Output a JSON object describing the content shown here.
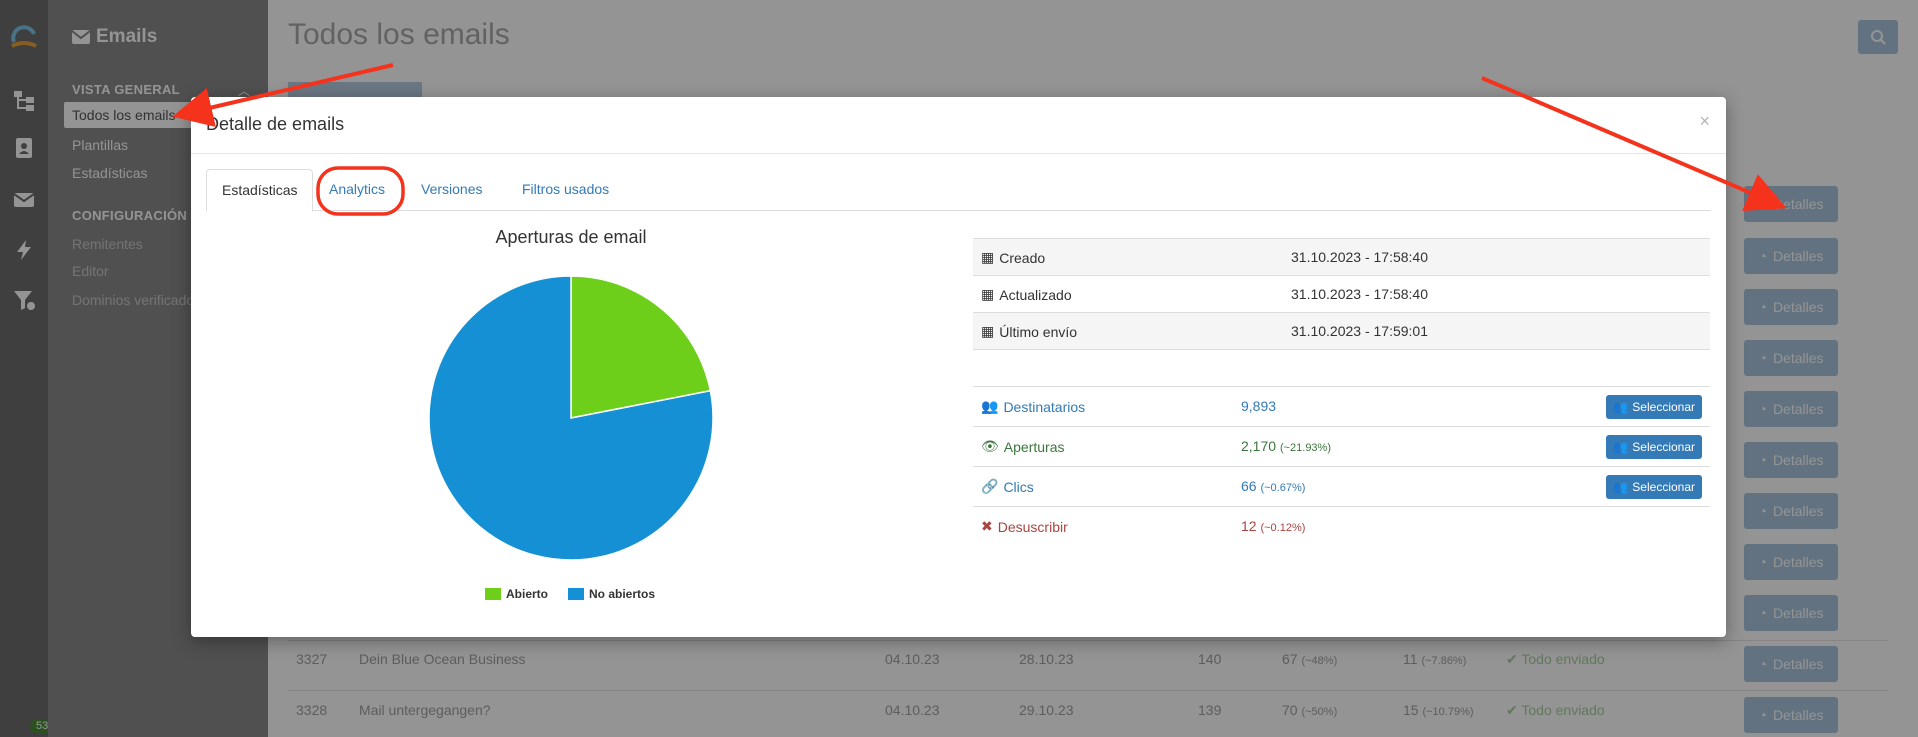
{
  "sidebar": {
    "title": "Emails",
    "sections": [
      {
        "label": "VISTA GENERAL",
        "items": [
          "Todos los emails",
          "Plantillas",
          "Estadísticas"
        ]
      },
      {
        "label": "CONFIGURACIÓN",
        "items": [
          "Remitentes",
          "Editor",
          "Dominios verificados"
        ]
      }
    ],
    "badge": "53"
  },
  "main": {
    "title": "Todos los emails",
    "details_label": "Detalles",
    "rows": [
      {
        "id": "3327",
        "subject": "Dein Blue Ocean Business",
        "date1": "04.10.23",
        "date2": "28.10.23",
        "sent": "140",
        "opens": "67",
        "opens_pct": "(~48%)",
        "clicks": "11",
        "clicks_pct": "(~7.86%)",
        "status": "Todo enviado"
      },
      {
        "id": "3328",
        "subject": "Mail untergegangen?",
        "date1": "04.10.23",
        "date2": "29.10.23",
        "sent": "139",
        "opens": "70",
        "opens_pct": "(~50%)",
        "clicks": "15",
        "clicks_pct": "(~10.79%)",
        "status": "Todo enviado"
      }
    ]
  },
  "modal": {
    "title": "Detalle de emails",
    "close": "×",
    "tabs": [
      "Estadísticas",
      "Analytics",
      "Versiones",
      "Filtros usados"
    ],
    "active_tab": 0
  },
  "chart_data": {
    "type": "pie",
    "title": "Aperturas de email",
    "labels": [
      "Abierto",
      "No abiertos"
    ],
    "values": [
      21.93,
      78.07
    ],
    "colors": [
      "#6ecf1b",
      "#1590d4"
    ],
    "legend": "bottom"
  },
  "info": {
    "dates": [
      {
        "label": "Creado",
        "value": "31.10.2023 - 17:58:40"
      },
      {
        "label": "Actualizado",
        "value": "31.10.2023 - 17:58:40"
      },
      {
        "label": "Último envío",
        "value": "31.10.2023 - 17:59:01"
      }
    ],
    "stats": [
      {
        "label": "Destinatarios",
        "value": "9,893",
        "pct": "",
        "button": "Seleccionar"
      },
      {
        "label": "Aperturas",
        "value": "2,170",
        "pct": "(~21.93%)",
        "button": "Seleccionar"
      },
      {
        "label": "Clics",
        "value": "66",
        "pct": "(~0.67%)",
        "button": "Seleccionar"
      },
      {
        "label": "Desuscribir",
        "value": "12",
        "pct": "(~0.12%)",
        "button": ""
      }
    ]
  }
}
